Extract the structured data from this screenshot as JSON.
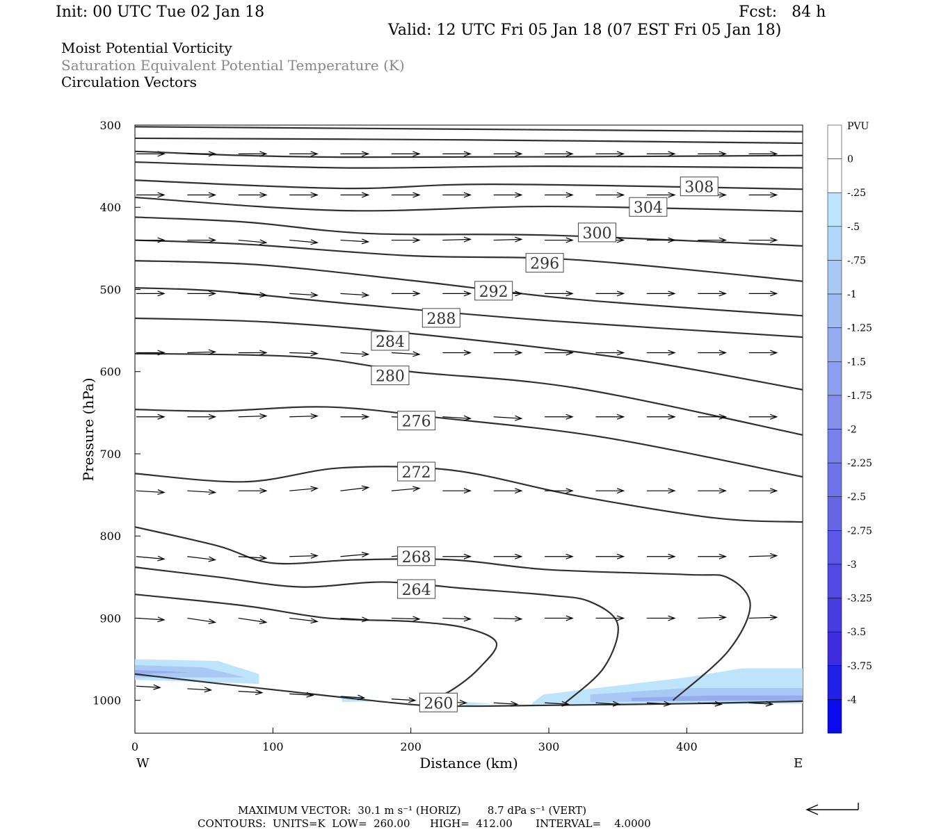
{
  "header": {
    "init": "Init: 00 UTC Tue 02 Jan 18",
    "fcst": "Fcst:   84 h",
    "valid": "Valid: 12 UTC Fri 05 Jan 18 (07 EST Fri 05 Jan 18)",
    "field1": "Moist Potential Vorticity",
    "field2": "Saturation Equivalent Potential Temperature (K)",
    "field3": "Circulation Vectors"
  },
  "footer": {
    "max_vector": "MAXIMUM VECTOR:  30.1 m s⁻¹ (HORIZ)        8.7 dPa s⁻¹ (VERT)",
    "contours": "CONTOURS:  UNITS=K  LOW=  260.00      HIGH=  412.00       INTERVAL=    4.0000"
  },
  "colors": {
    "contour": "#303030",
    "vector": "#000000",
    "pv_light": "#bde4fb",
    "pv_mid": "#a9c8f4",
    "pv_dark": "#8aa0ee"
  },
  "chart_data": {
    "type": "contour",
    "xlabel": "Distance (km)",
    "ylabel": "Pressure (hPa)",
    "x_left_label": "W",
    "x_right_label": "E",
    "xlim": [
      0,
      484
    ],
    "ylim": [
      1040,
      300
    ],
    "xticks": [
      0,
      100,
      200,
      300,
      400
    ],
    "yticks": [
      300,
      400,
      500,
      600,
      700,
      800,
      900,
      1000
    ],
    "colorbar": {
      "unit": "PVU",
      "levels": [
        "0",
        "-.25",
        "-.5",
        "-.75",
        "-1",
        "-1.25",
        "-1.5",
        "-1.75",
        "-2",
        "-2.25",
        "-2.5",
        "-2.75",
        "-3",
        "-3.25",
        "-3.5",
        "-3.75",
        "-4"
      ],
      "colors": [
        "#ffffff",
        "#ffffff",
        "#bde4fb",
        "#b2d6f8",
        "#a9c8f4",
        "#a0baf2",
        "#96acf0",
        "#8c9eee",
        "#8290ec",
        "#7882ea",
        "#6e74e8",
        "#6466e6",
        "#5a58e4",
        "#504ae2",
        "#463ce0",
        "#3c2ede",
        "#2020e6",
        "#0a0aec"
      ]
    },
    "contour_labels": [
      {
        "value": "308",
        "x": 409,
        "p": 375
      },
      {
        "value": "304",
        "x": 372,
        "p": 400
      },
      {
        "value": "300",
        "x": 335,
        "p": 431
      },
      {
        "value": "296",
        "x": 297,
        "p": 468
      },
      {
        "value": "292",
        "x": 260,
        "p": 502
      },
      {
        "value": "288",
        "x": 222,
        "p": 535
      },
      {
        "value": "284",
        "x": 185,
        "p": 563
      },
      {
        "value": "280",
        "x": 185,
        "p": 605
      },
      {
        "value": "276",
        "x": 204,
        "p": 660
      },
      {
        "value": "272",
        "x": 204,
        "p": 722
      },
      {
        "value": "268",
        "x": 204,
        "p": 825
      },
      {
        "value": "264",
        "x": 204,
        "p": 865
      },
      {
        "value": "260",
        "x": 220,
        "p": 1003
      }
    ],
    "contours": [
      [
        [
          0,
          302
        ],
        [
          484,
          308
        ]
      ],
      [
        [
          0,
          316
        ],
        [
          240,
          318
        ],
        [
          484,
          322
        ]
      ],
      [
        [
          0,
          332
        ],
        [
          150,
          339
        ],
        [
          484,
          337
        ]
      ],
      [
        [
          0,
          345
        ],
        [
          150,
          352
        ],
        [
          300,
          350
        ],
        [
          484,
          352
        ]
      ],
      [
        [
          0,
          367
        ],
        [
          150,
          377
        ],
        [
          260,
          372
        ],
        [
          484,
          378
        ]
      ],
      [
        [
          0,
          388
        ],
        [
          150,
          404
        ],
        [
          300,
          399
        ],
        [
          484,
          405
        ]
      ],
      [
        [
          0,
          412
        ],
        [
          80,
          418
        ],
        [
          170,
          432
        ],
        [
          300,
          434
        ],
        [
          484,
          447
        ]
      ],
      [
        [
          0,
          440
        ],
        [
          80,
          445
        ],
        [
          200,
          459
        ],
        [
          320,
          464
        ],
        [
          484,
          490
        ]
      ],
      [
        [
          0,
          465
        ],
        [
          90,
          470
        ],
        [
          200,
          489
        ],
        [
          320,
          512
        ],
        [
          484,
          532
        ]
      ],
      [
        [
          0,
          498
        ],
        [
          60,
          502
        ],
        [
          160,
          518
        ],
        [
          300,
          538
        ],
        [
          484,
          558
        ]
      ],
      [
        [
          0,
          535
        ],
        [
          100,
          540
        ],
        [
          220,
          557
        ],
        [
          360,
          585
        ],
        [
          484,
          622
        ]
      ],
      [
        [
          0,
          578
        ],
        [
          120,
          582
        ],
        [
          200,
          600
        ],
        [
          320,
          620
        ],
        [
          484,
          677
        ]
      ],
      [
        [
          0,
          646
        ],
        [
          60,
          648
        ],
        [
          140,
          643
        ],
        [
          220,
          656
        ],
        [
          340,
          680
        ],
        [
          484,
          728
        ]
      ],
      [
        [
          0,
          724
        ],
        [
          80,
          734
        ],
        [
          150,
          717
        ],
        [
          230,
          720
        ],
        [
          320,
          751
        ],
        [
          420,
          778
        ],
        [
          484,
          783
        ]
      ],
      [
        [
          0,
          789
        ],
        [
          60,
          812
        ],
        [
          100,
          833
        ],
        [
          160,
          829
        ],
        [
          230,
          829
        ],
        [
          300,
          841
        ],
        [
          400,
          847
        ],
        [
          430,
          851
        ],
        [
          446,
          884
        ],
        [
          430,
          940
        ],
        [
          390,
          1000
        ]
      ],
      [
        [
          0,
          838
        ],
        [
          60,
          850
        ],
        [
          120,
          862
        ],
        [
          180,
          856
        ],
        [
          240,
          864
        ],
        [
          300,
          872
        ],
        [
          330,
          880
        ],
        [
          350,
          908
        ],
        [
          340,
          960
        ],
        [
          312,
          1003
        ]
      ],
      [
        [
          0,
          871
        ],
        [
          80,
          885
        ],
        [
          140,
          900
        ],
        [
          200,
          904
        ],
        [
          240,
          912
        ],
        [
          262,
          930
        ],
        [
          250,
          960
        ],
        [
          232,
          985
        ],
        [
          210,
          1005
        ]
      ],
      [
        [
          0,
          968
        ],
        [
          100,
          987
        ],
        [
          200,
          1005
        ],
        [
          240,
          1007
        ],
        [
          300,
          1006
        ],
        [
          400,
          1004
        ],
        [
          484,
          1001
        ]
      ]
    ],
    "pv_regions": [
      {
        "level": "-.25",
        "points": [
          [
            0,
            950
          ],
          [
            60,
            952
          ],
          [
            90,
            968
          ],
          [
            90,
            980
          ],
          [
            0,
            975
          ]
        ]
      },
      {
        "level": "-.25",
        "points": [
          [
            150,
            994
          ],
          [
            180,
            1001
          ],
          [
            150,
            1002
          ]
        ]
      },
      {
        "level": "-.25",
        "points": [
          [
            240,
            1002
          ],
          [
            260,
            1004
          ],
          [
            240,
            1006
          ]
        ]
      },
      {
        "level": "-.25",
        "points": [
          [
            288,
            1003
          ],
          [
            296,
            993
          ],
          [
            330,
            986
          ],
          [
            400,
            972
          ],
          [
            440,
            961
          ],
          [
            484,
            961
          ],
          [
            484,
            1004
          ],
          [
            288,
            1006
          ]
        ]
      },
      {
        "level": "-.75",
        "points": [
          [
            0,
            957
          ],
          [
            50,
            960
          ],
          [
            80,
            972
          ],
          [
            0,
            972
          ]
        ]
      },
      {
        "level": "-.75",
        "points": [
          [
            330,
            993
          ],
          [
            400,
            985
          ],
          [
            484,
            985
          ],
          [
            484,
            1000
          ],
          [
            330,
            1002
          ]
        ]
      },
      {
        "level": "-1.25",
        "points": [
          [
            0,
            963
          ],
          [
            40,
            966
          ],
          [
            0,
            968
          ]
        ]
      },
      {
        "level": "-1.25",
        "points": [
          [
            360,
            997
          ],
          [
            420,
            994
          ],
          [
            484,
            994
          ],
          [
            484,
            1000
          ],
          [
            360,
            1001
          ]
        ]
      }
    ],
    "vectors": {
      "pressure_rows": [
        335,
        385,
        440,
        505,
        577,
        655,
        745,
        825,
        900
      ],
      "x_positions": [
        0,
        37,
        74,
        111,
        148,
        185,
        222,
        259,
        296,
        333,
        370,
        407,
        444,
        481
      ],
      "rows": [
        {
          "p": 335,
          "u": [
            1,
            1,
            1,
            1,
            1,
            1,
            1,
            1,
            1,
            1,
            1,
            1,
            1,
            1
          ],
          "w": [
            0,
            0,
            0,
            0,
            0,
            0,
            0,
            0,
            0,
            0,
            0,
            0,
            0,
            0
          ]
        },
        {
          "p": 385,
          "u": [
            1,
            1,
            1,
            1,
            1,
            1,
            1,
            1,
            1,
            1,
            1,
            1,
            1,
            1
          ],
          "w": [
            0,
            0,
            0,
            0,
            0,
            0,
            0,
            0,
            0,
            0,
            0,
            0,
            0,
            0.2
          ]
        },
        {
          "p": 440,
          "u": [
            1,
            1,
            1,
            1,
            1,
            1,
            1,
            1,
            1,
            1,
            1,
            1,
            1,
            1
          ],
          "w": [
            0,
            0,
            0.3,
            0.3,
            0.2,
            0,
            -0.1,
            -0.1,
            0,
            0,
            0,
            0,
            0,
            0
          ]
        },
        {
          "p": 505,
          "u": [
            1,
            1,
            1,
            1,
            1,
            1,
            1,
            1,
            1,
            1,
            1,
            1,
            1,
            1
          ],
          "w": [
            0,
            0,
            0.2,
            0.2,
            0.2,
            0,
            0,
            0,
            0,
            0,
            0,
            0,
            0,
            0
          ]
        },
        {
          "p": 577,
          "u": [
            1,
            1,
            1,
            1,
            1,
            1,
            1,
            1,
            1,
            1,
            1,
            1,
            1,
            1
          ],
          "w": [
            0,
            -0.1,
            0,
            0.1,
            0.2,
            0.2,
            0,
            0,
            0,
            0,
            0,
            0,
            0,
            0
          ]
        },
        {
          "p": 655,
          "u": [
            1,
            1,
            1,
            1,
            1,
            1,
            1,
            1,
            1,
            1,
            1,
            1,
            1,
            1
          ],
          "w": [
            0,
            0,
            -0.1,
            -0.1,
            0,
            0.1,
            0.2,
            0.2,
            0,
            0,
            0,
            0,
            0,
            0
          ]
        },
        {
          "p": 745,
          "u": [
            1,
            1,
            1,
            1,
            1,
            1,
            1,
            1,
            1,
            1,
            1,
            1,
            1,
            1
          ],
          "w": [
            0.2,
            0.2,
            0,
            -0.3,
            -0.4,
            -0.3,
            0,
            0,
            0,
            0,
            0,
            0,
            0,
            0
          ]
        },
        {
          "p": 825,
          "u": [
            1,
            1,
            1,
            1,
            1,
            1,
            1,
            1,
            1,
            1,
            1,
            1,
            1,
            1
          ],
          "w": [
            0.3,
            0.4,
            0.2,
            -0.1,
            -0.3,
            -0.3,
            0,
            0,
            0,
            0,
            0,
            0,
            -0.1,
            -0.1
          ]
        },
        {
          "p": 900,
          "u": [
            1,
            1,
            1,
            1,
            1,
            1,
            1,
            1,
            1,
            1,
            1,
            1,
            1,
            1
          ],
          "w": [
            0.2,
            0.5,
            0.5,
            0.4,
            0.2,
            0.1,
            0.1,
            0.1,
            0,
            0,
            0,
            -0.1,
            -0.1,
            -0.1
          ]
        }
      ],
      "surface_row": {
        "p": 1003,
        "x": [
          0,
          37,
          74,
          111,
          148,
          185,
          222,
          259,
          296,
          333,
          370,
          407,
          444,
          481
        ]
      }
    }
  }
}
